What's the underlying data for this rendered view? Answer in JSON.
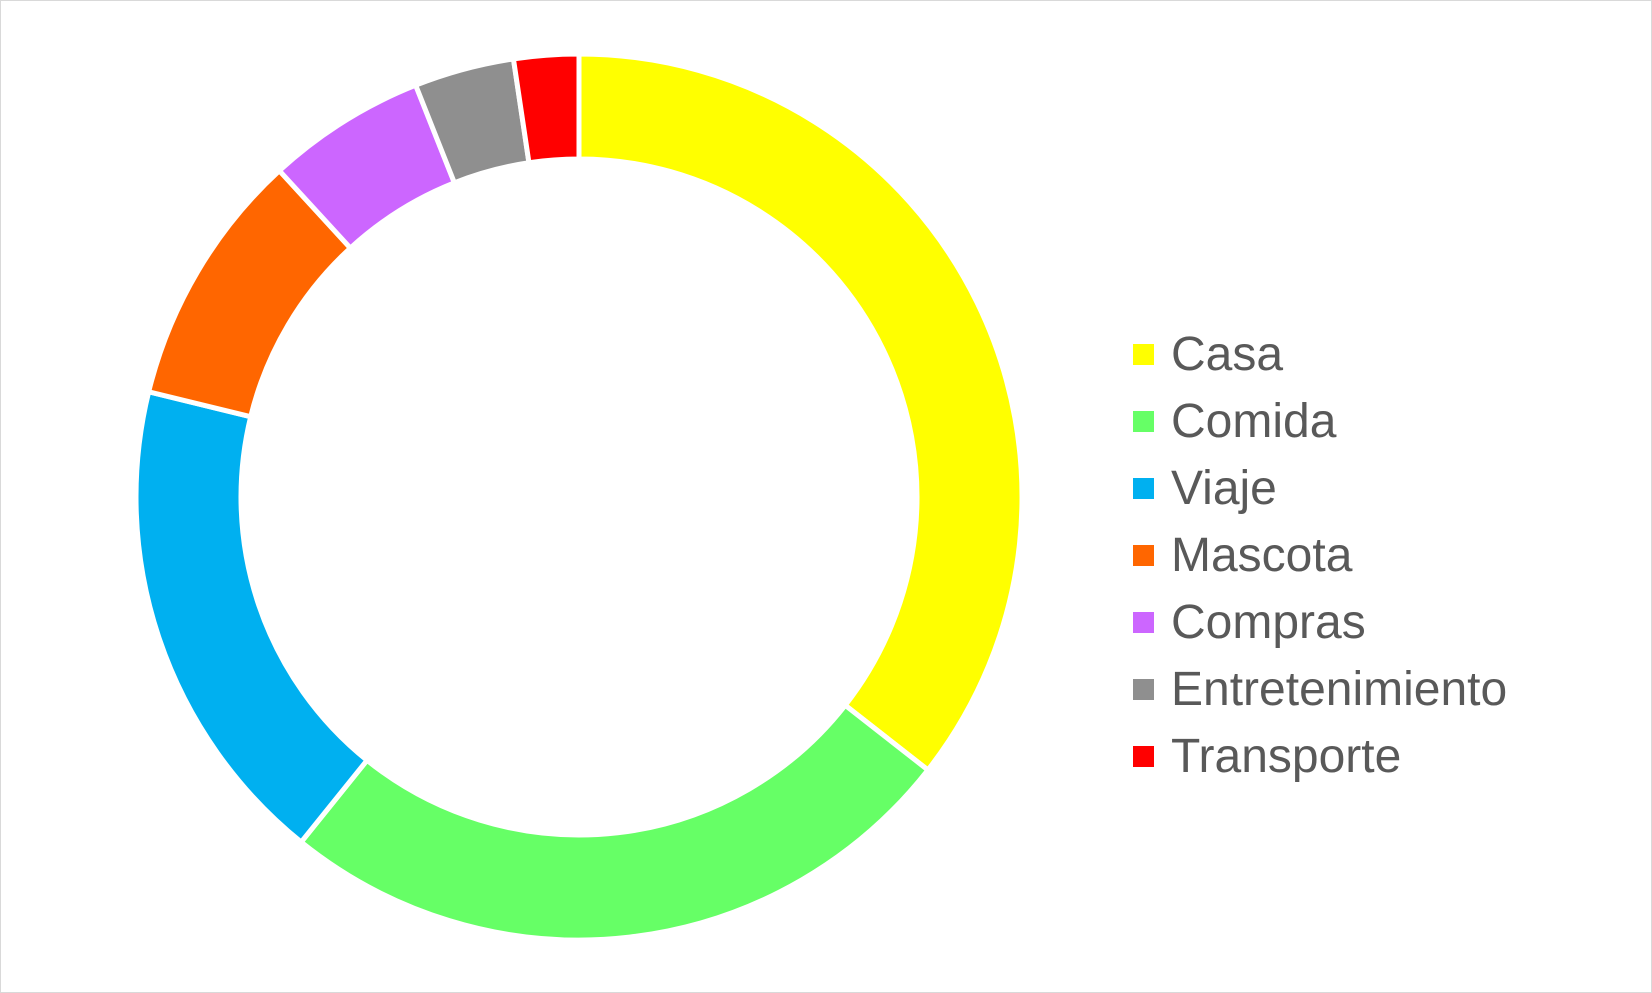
{
  "chart_data": {
    "type": "pie",
    "variant": "doughnut",
    "legend_position": "right",
    "categories": [
      "Casa",
      "Comida",
      "Viaje",
      "Mascota",
      "Compras",
      "Entretenimiento",
      "Transporte"
    ],
    "values": [
      36.1,
      25.6,
      18.3,
      9.5,
      5.9,
      3.7,
      2.4
    ],
    "colors": [
      "#FFFF00",
      "#66FF66",
      "#00B0F0",
      "#FF6600",
      "#CC66FF",
      "#8F8F8F",
      "#FF0000"
    ]
  }
}
